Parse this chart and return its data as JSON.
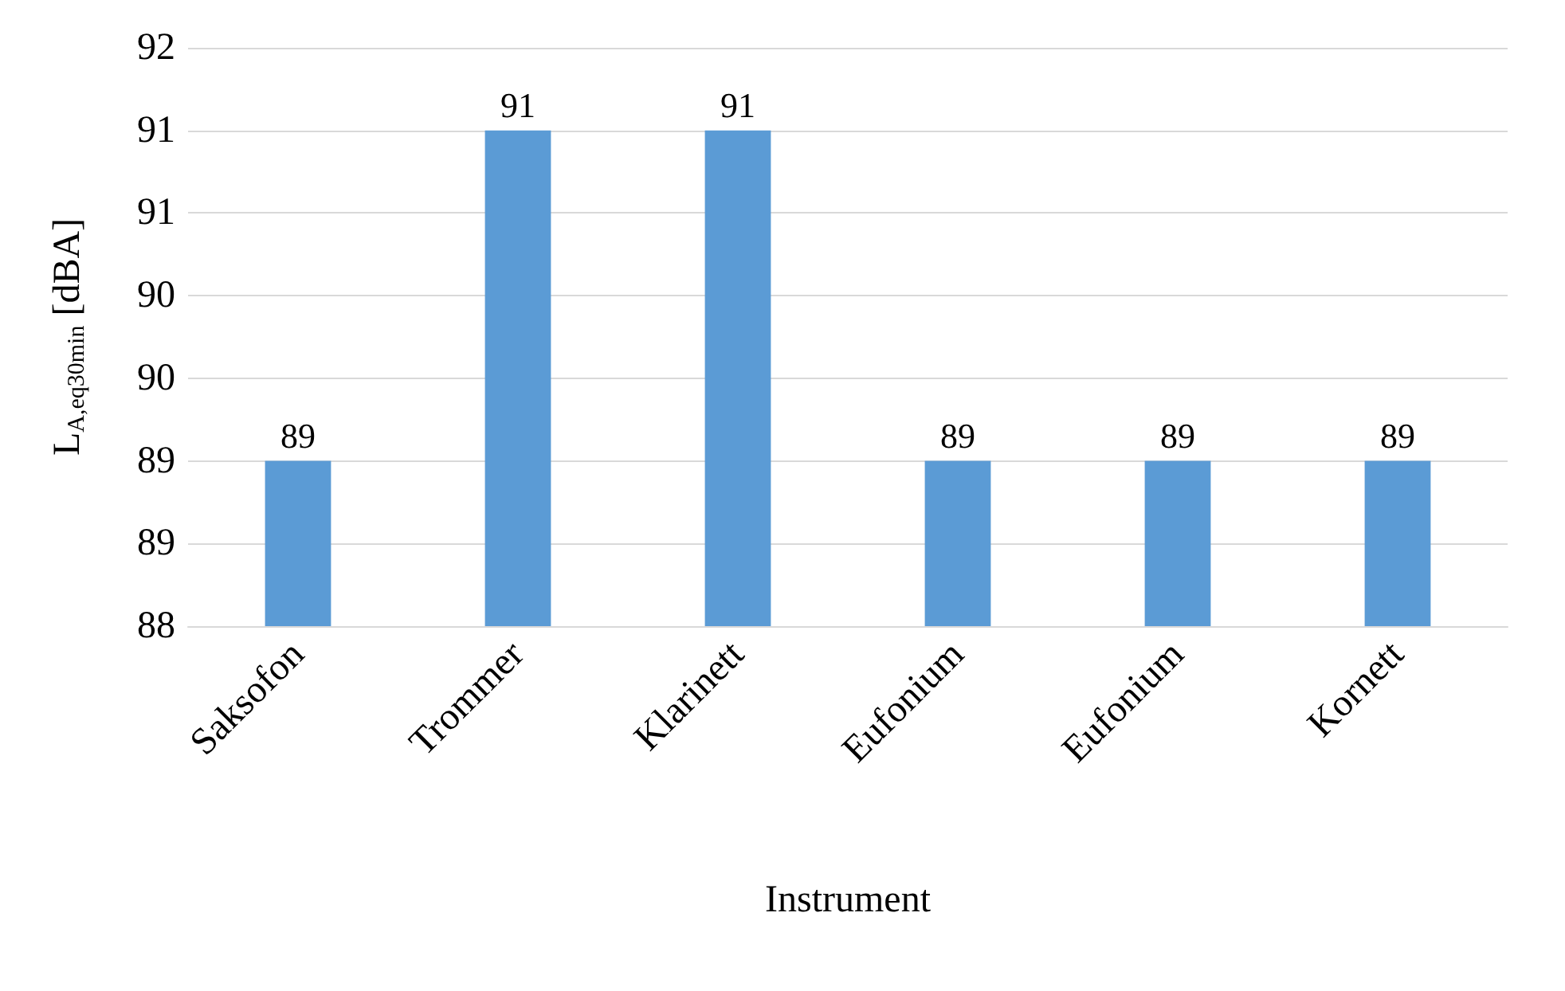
{
  "chart_data": {
    "type": "bar",
    "xlabel": "Instrument",
    "ylabel": "L$_{A,eq30min}$ [dBA]",
    "categories": [
      "Saksofon",
      "Trommer",
      "Klarinett",
      "Eufonium",
      "Eufonium",
      "Kornett"
    ],
    "values": [
      89,
      91,
      91,
      89,
      89,
      89
    ],
    "color": "#5b9bd5",
    "ylim": [
      88,
      91.5
    ],
    "yticks": [
      88,
      {
        "value": 88.5,
        "label": "89"
      },
      89,
      {
        "value": 89.5,
        "label": "90"
      },
      90,
      {
        "value": 90.5,
        "label": "91"
      },
      91,
      {
        "value": 91.5,
        "label": "92"
      }
    ],
    "grid": "y",
    "data_labels": true
  }
}
